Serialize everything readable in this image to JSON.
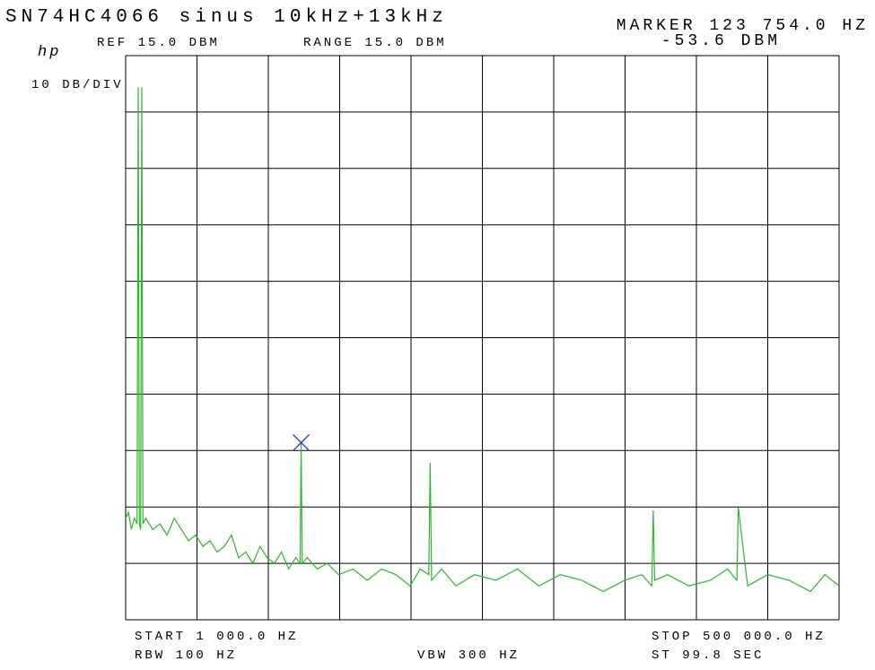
{
  "chart_data": {
    "type": "line",
    "title": "SN74HC4066 sinus 10kHz+13kHz",
    "brand": "hp",
    "ref_label": "REF 15.0 DBM",
    "range_label": "RANGE 15.0 DBM",
    "scale_label": "10 DB/DIV",
    "start_label": "START 1 000.0 HZ",
    "stop_label": "STOP 500 000.0 HZ",
    "rbw_label": "RBW 100 HZ",
    "vbw_label": "VBW 300 HZ",
    "sweep_label": "ST 99.8 SEC",
    "marker": {
      "x": 123754,
      "y": -53.6,
      "label": "MARKER 123 754.0 HZ",
      "value_label": "-53.6 DBM",
      "color": "#2a3cc8"
    },
    "xlim": [
      1000,
      500000
    ],
    "ylim": [
      -85,
      15
    ],
    "xticks": [
      1000,
      50900,
      100800,
      150700,
      200600,
      250500,
      300400,
      350300,
      400200,
      450100,
      500000
    ],
    "yticks": [
      -85,
      -75,
      -65,
      -55,
      -45,
      -35,
      -25,
      -15,
      -5,
      5,
      15
    ],
    "grid": true,
    "x": [
      1000,
      3000,
      5000,
      7000,
      9000,
      9800,
      10600,
      11500,
      12300,
      13100,
      15000,
      20000,
      25000,
      30000,
      35000,
      40000,
      45000,
      50000,
      55000,
      60000,
      65000,
      70000,
      75000,
      80000,
      85000,
      90000,
      95000,
      100000,
      105000,
      110000,
      115000,
      120000,
      123000,
      123754,
      124500,
      128000,
      135000,
      142000,
      150000,
      160000,
      170000,
      180000,
      190000,
      200000,
      207000,
      213000,
      214000,
      215000,
      222000,
      232000,
      245000,
      260000,
      275000,
      290000,
      305000,
      320000,
      335000,
      350000,
      362000,
      369000,
      370000,
      371000,
      380000,
      395000,
      410000,
      422000,
      428500,
      429500,
      436000,
      450000,
      465000,
      480000,
      490000,
      500000
    ],
    "series": [
      {
        "name": "trace",
        "color": "#2fb52f",
        "values": [
          -67,
          -66,
          -69,
          -67,
          -68,
          9.4,
          -68,
          -69,
          9.4,
          -68,
          -67,
          -69,
          -68,
          -70,
          -67,
          -69,
          -71,
          -70,
          -72,
          -71,
          -73,
          -72,
          -70,
          -74,
          -73,
          -75,
          -72,
          -74,
          -75,
          -73,
          -76,
          -74,
          -75,
          -53.6,
          -75,
          -74,
          -76,
          -75,
          -77,
          -76,
          -78,
          -76,
          -77,
          -79,
          -76,
          -77,
          -57.2,
          -78,
          -76,
          -79,
          -77,
          -78,
          -76,
          -79,
          -77,
          -78,
          -80,
          -78,
          -77,
          -79,
          -65.6,
          -78,
          -77,
          -79,
          -78,
          -76,
          -78,
          -65.1,
          -79,
          -77,
          -78,
          -80,
          -77,
          -79
        ]
      }
    ]
  }
}
